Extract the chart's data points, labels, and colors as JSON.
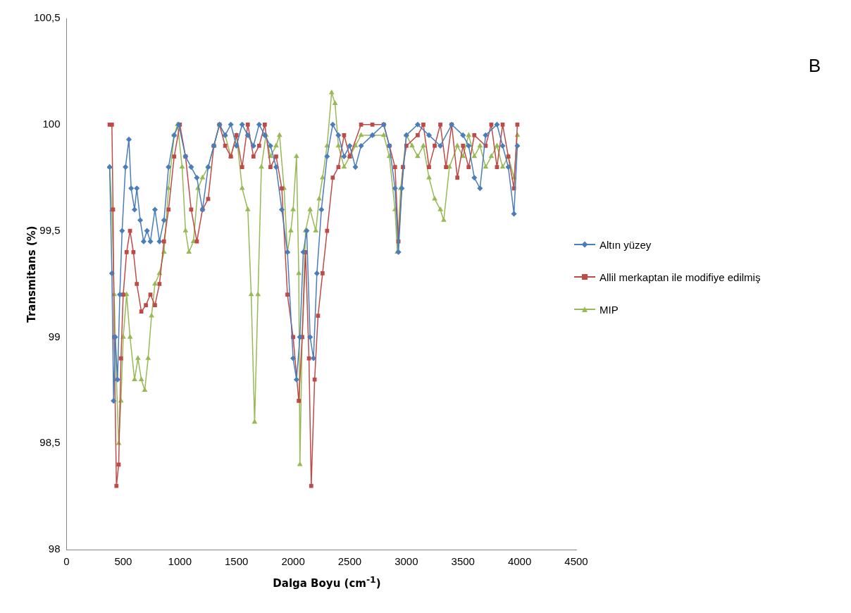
{
  "chart_data": {
    "type": "line",
    "xlabel": "Dalga Boyu (cm$^{-1}$)",
    "ylabel": "Transmitans  (%)",
    "annotations": [
      "B"
    ],
    "xlim": [
      0,
      4500
    ],
    "xticks": [
      0,
      500,
      1000,
      1500,
      2000,
      2500,
      3000,
      3500,
      4000,
      4500
    ],
    "ylim": [
      98,
      100.5
    ],
    "yticks": [
      98,
      {
        "value": 98.5,
        "label": "98,5"
      },
      99,
      {
        "value": 99.5,
        "label": "99,5"
      },
      100,
      {
        "value": 100.5,
        "label": "100,5"
      }
    ],
    "grid": false,
    "legend": "right",
    "line_style": "solid",
    "series": [
      {
        "name": "Altın yüzey",
        "color": "#4a7ebb",
        "marker": "diamond",
        "x": [
          380,
          400,
          415,
          430,
          450,
          470,
          490,
          520,
          550,
          570,
          600,
          620,
          650,
          680,
          710,
          740,
          780,
          820,
          860,
          900,
          950,
          990,
          1050,
          1100,
          1150,
          1200,
          1250,
          1300,
          1350,
          1400,
          1450,
          1500,
          1550,
          1600,
          1650,
          1700,
          1750,
          1800,
          1850,
          1900,
          1950,
          2000,
          2030,
          2060,
          2090,
          2120,
          2150,
          2180,
          2210,
          2250,
          2300,
          2350,
          2400,
          2450,
          2500,
          2550,
          2600,
          2700,
          2800,
          2850,
          2900,
          2930,
          2960,
          3000,
          3100,
          3200,
          3300,
          3400,
          3500,
          3550,
          3600,
          3650,
          3700,
          3800,
          3850,
          3900,
          3950,
          3980
        ],
        "values": [
          99.8,
          99.3,
          98.7,
          99.0,
          98.8,
          99.2,
          99.5,
          99.8,
          99.93,
          99.7,
          99.6,
          99.7,
          99.55,
          99.45,
          99.5,
          99.45,
          99.6,
          99.45,
          99.55,
          99.8,
          99.95,
          100,
          99.85,
          99.8,
          99.75,
          99.6,
          99.8,
          99.9,
          100,
          99.95,
          100,
          99.9,
          100,
          99.95,
          99.9,
          100,
          99.95,
          99.9,
          99.8,
          99.6,
          99.4,
          98.9,
          98.8,
          99.0,
          99.4,
          99.5,
          99.0,
          98.9,
          99.3,
          99.6,
          99.85,
          100,
          99.95,
          99.85,
          99.9,
          99.8,
          99.9,
          99.95,
          100,
          99.9,
          99.7,
          99.4,
          99.7,
          99.95,
          100,
          99.95,
          99.9,
          100,
          99.95,
          99.9,
          99.75,
          99.7,
          99.95,
          100,
          99.9,
          99.8,
          99.58,
          99.9
        ]
      },
      {
        "name": "Allil merkaptan ile modifiye edilmiş",
        "color": "#be4b48",
        "marker": "square",
        "x": [
          380,
          400,
          410,
          420,
          440,
          460,
          480,
          500,
          530,
          560,
          590,
          620,
          660,
          700,
          740,
          780,
          820,
          860,
          900,
          950,
          1000,
          1050,
          1100,
          1150,
          1200,
          1250,
          1300,
          1350,
          1400,
          1450,
          1500,
          1550,
          1600,
          1650,
          1700,
          1750,
          1800,
          1850,
          1900,
          1950,
          2000,
          2050,
          2080,
          2110,
          2140,
          2160,
          2190,
          2220,
          2260,
          2300,
          2350,
          2400,
          2450,
          2500,
          2600,
          2700,
          2800,
          2850,
          2900,
          2930,
          2970,
          3000,
          3100,
          3150,
          3200,
          3250,
          3300,
          3350,
          3400,
          3450,
          3500,
          3550,
          3600,
          3700,
          3750,
          3800,
          3850,
          3900,
          3950,
          3980
        ],
        "values": [
          100,
          100,
          99.6,
          99.0,
          98.3,
          98.4,
          98.9,
          99.2,
          99.4,
          99.5,
          99.4,
          99.25,
          99.12,
          99.15,
          99.2,
          99.15,
          99.25,
          99.45,
          99.6,
          99.85,
          100,
          99.85,
          99.6,
          99.45,
          99.6,
          99.65,
          99.9,
          100,
          99.9,
          99.85,
          99.95,
          99.8,
          100,
          99.85,
          99.9,
          100,
          99.8,
          99.85,
          99.7,
          99.2,
          99.0,
          98.7,
          99.0,
          99.4,
          98.9,
          98.3,
          98.8,
          99.1,
          99.3,
          99.5,
          99.75,
          99.8,
          99.95,
          99.85,
          100,
          100,
          100,
          99.9,
          99.8,
          99.45,
          99.8,
          99.9,
          99.95,
          100,
          99.8,
          99.9,
          100,
          99.8,
          100,
          99.75,
          99.9,
          99.8,
          99.95,
          99.9,
          100,
          99.8,
          100,
          99.85,
          99.7,
          100
        ]
      },
      {
        "name": "MIP",
        "color": "#98b954",
        "marker": "triangle",
        "x": [
          380,
          400,
          420,
          440,
          460,
          480,
          500,
          530,
          560,
          600,
          630,
          660,
          690,
          720,
          750,
          780,
          820,
          860,
          900,
          950,
          980,
          1020,
          1050,
          1080,
          1120,
          1160,
          1200,
          1250,
          1300,
          1350,
          1400,
          1450,
          1500,
          1550,
          1600,
          1630,
          1660,
          1690,
          1720,
          1760,
          1800,
          1850,
          1880,
          1920,
          1950,
          1980,
          2000,
          2030,
          2050,
          2060,
          2080,
          2110,
          2150,
          2200,
          2230,
          2260,
          2300,
          2340,
          2370,
          2400,
          2450,
          2500,
          2550,
          2600,
          2700,
          2800,
          2850,
          2900,
          2920,
          2950,
          3000,
          3050,
          3100,
          3150,
          3200,
          3250,
          3300,
          3330,
          3380,
          3450,
          3500,
          3550,
          3600,
          3650,
          3700,
          3750,
          3800,
          3850,
          3900,
          3950,
          3980
        ],
        "values": [
          99.8,
          99.6,
          99.2,
          98.8,
          98.5,
          98.7,
          99.0,
          99.2,
          99.0,
          98.8,
          98.9,
          98.8,
          98.75,
          98.9,
          99.1,
          99.25,
          99.3,
          99.4,
          99.7,
          99.95,
          100,
          99.8,
          99.5,
          99.4,
          99.45,
          99.7,
          99.75,
          99.8,
          99.9,
          100,
          99.95,
          99.85,
          99.95,
          99.7,
          99.6,
          99.2,
          98.6,
          99.2,
          99.8,
          99.95,
          99.85,
          99.9,
          99.95,
          99.7,
          99.4,
          99.5,
          99.6,
          99.85,
          99.3,
          98.4,
          99.0,
          99.5,
          99.6,
          99.5,
          99.65,
          99.75,
          99.9,
          100.15,
          100.1,
          99.9,
          99.8,
          99.85,
          99.9,
          99.95,
          99.95,
          99.95,
          99.85,
          99.6,
          99.4,
          99.7,
          99.95,
          99.9,
          99.85,
          99.9,
          99.75,
          99.65,
          99.6,
          99.55,
          99.8,
          99.9,
          99.85,
          99.95,
          99.85,
          99.9,
          99.8,
          99.85,
          99.9,
          99.8,
          99.85,
          99.75,
          99.95
        ]
      }
    ]
  }
}
